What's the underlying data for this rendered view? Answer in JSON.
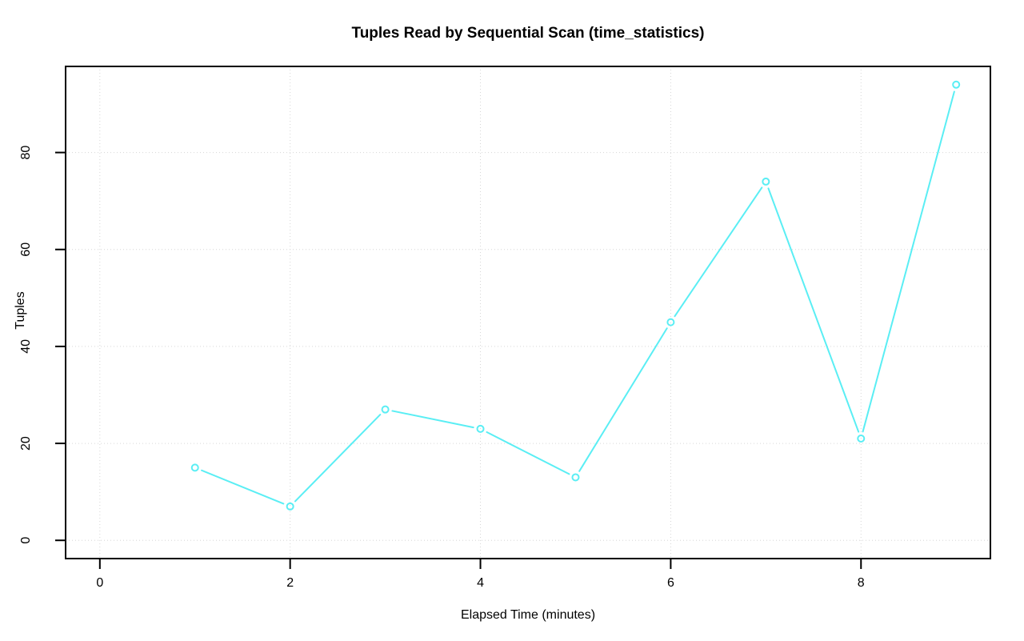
{
  "chart_data": {
    "type": "line",
    "title": "Tuples Read by Sequential Scan (time_statistics)",
    "xlabel": "Elapsed Time (minutes)",
    "ylabel": "Tuples",
    "x": [
      1,
      2,
      3,
      4,
      5,
      6,
      7,
      8,
      9
    ],
    "values": [
      15,
      7,
      27,
      23,
      13,
      45,
      74,
      21,
      94
    ],
    "xlim": [
      0,
      9
    ],
    "ylim": [
      0,
      94
    ],
    "x_ticks": [
      0,
      2,
      4,
      6,
      8
    ],
    "y_ticks": [
      0,
      20,
      40,
      60,
      80
    ],
    "grid": true,
    "grid_style": "dotted",
    "legend": "none",
    "marker": "open-circle",
    "line_style": "points-with-gapped-line",
    "colors": {
      "series": "#5AEEF4",
      "grid": "#d6d6d6",
      "axis": "#000000",
      "text": "#000000",
      "background": "#ffffff"
    }
  }
}
